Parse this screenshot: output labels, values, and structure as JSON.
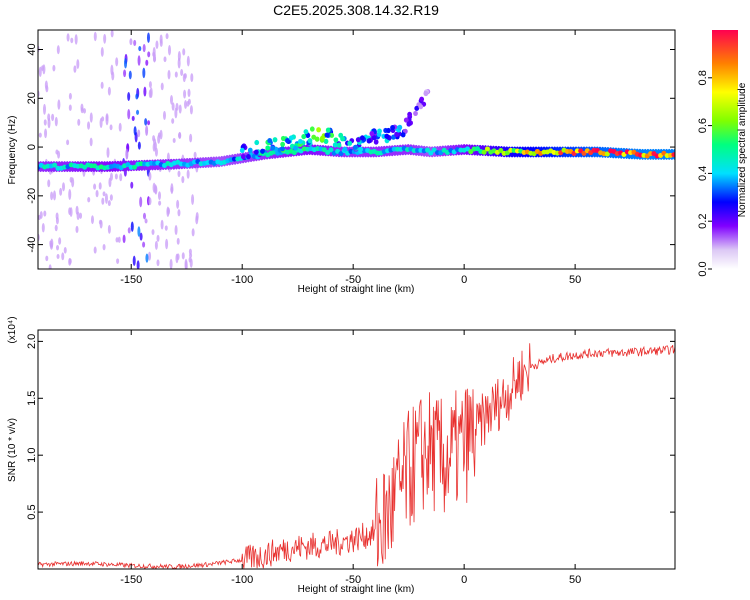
{
  "title": "C2E5.2025.308.14.32.R19",
  "chart_data": [
    {
      "type": "heatmap",
      "xlabel": "Height of straight line (km)",
      "ylabel": "Frequency (Hz)",
      "xlim": [
        -192,
        95
      ],
      "ylim": [
        -50,
        48
      ],
      "x_ticks": [
        -150,
        -100,
        -50,
        0,
        50
      ],
      "x_tick_labels": [
        "-150",
        "-100",
        "-50",
        "0",
        "50"
      ],
      "y_ticks": [
        -40,
        -20,
        0,
        20,
        40
      ],
      "y_tick_labels": [
        "-40",
        "-20",
        "0",
        "20",
        "40"
      ],
      "colorbar": {
        "label": "Normalized spectral amplitude",
        "range": [
          0,
          1
        ],
        "ticks": [
          0.0,
          0.2,
          0.4,
          0.6,
          0.8
        ],
        "tick_labels": [
          "0.0",
          "0.2",
          "0.4",
          "0.6",
          "0.8"
        ]
      },
      "ridge": {
        "heights": [
          -192,
          -160,
          -130,
          -110,
          -90,
          -70,
          -55,
          -40,
          -25,
          -15,
          0,
          20,
          40,
          60,
          80,
          95
        ],
        "frequency": [
          -8,
          -8,
          -7,
          -6,
          -3,
          -1,
          -2,
          -2,
          -1,
          -2,
          -1,
          -2,
          -2,
          -2,
          -3,
          -3
        ],
        "amplitude": [
          0.45,
          0.5,
          0.45,
          0.4,
          0.45,
          0.5,
          0.45,
          0.45,
          0.45,
          0.4,
          0.5,
          0.75,
          0.85,
          0.95,
          1.0,
          1.0
        ]
      },
      "upper_branch": {
        "heights": [
          -100,
          -80,
          -65,
          -50,
          -40,
          -30,
          -25,
          -20,
          -16
        ],
        "frequency": [
          -2,
          1,
          6,
          0,
          4,
          6,
          10,
          16,
          22
        ],
        "amplitude": [
          0.35,
          0.4,
          0.45,
          0.35,
          0.3,
          0.3,
          0.25,
          0.2,
          0.15
        ]
      },
      "scatter_band": {
        "heights": [
          -192,
          -120
        ],
        "amplitude": 0.1
      }
    },
    {
      "type": "line",
      "xlabel": "Height of straight line (km)",
      "ylabel": "SNR (10 * v/v)",
      "y_multiplier": "(x10⁴)",
      "xlim": [
        -192,
        95
      ],
      "ylim": [
        0,
        2.1
      ],
      "x_ticks": [
        -150,
        -100,
        -50,
        0,
        50
      ],
      "x_tick_labels": [
        "-150",
        "-100",
        "-50",
        "0",
        "50"
      ],
      "y_ticks": [
        0.5,
        1.0,
        1.5,
        2.0
      ],
      "y_tick_labels": [
        "0.5",
        "1.0",
        "1.5",
        "2.0"
      ],
      "color": "#e8302e",
      "series": [
        {
          "name": "SNR",
          "x": [
            -192,
            -170,
            -150,
            -130,
            -115,
            -100,
            -90,
            -80,
            -70,
            -60,
            -50,
            -40,
            -35,
            -30,
            -25,
            -20,
            -15,
            -10,
            -5,
            0,
            5,
            10,
            15,
            20,
            25,
            30,
            40,
            50,
            60,
            70,
            80,
            90,
            95
          ],
          "values": [
            0.04,
            0.05,
            0.03,
            0.02,
            0.04,
            0.08,
            0.12,
            0.18,
            0.2,
            0.22,
            0.26,
            0.32,
            0.45,
            0.65,
            0.85,
            1.0,
            1.05,
            0.95,
            1.0,
            1.1,
            1.2,
            1.35,
            1.45,
            1.55,
            1.7,
            1.78,
            1.85,
            1.88,
            1.9,
            1.9,
            1.91,
            1.92,
            1.93
          ]
        }
      ]
    }
  ]
}
